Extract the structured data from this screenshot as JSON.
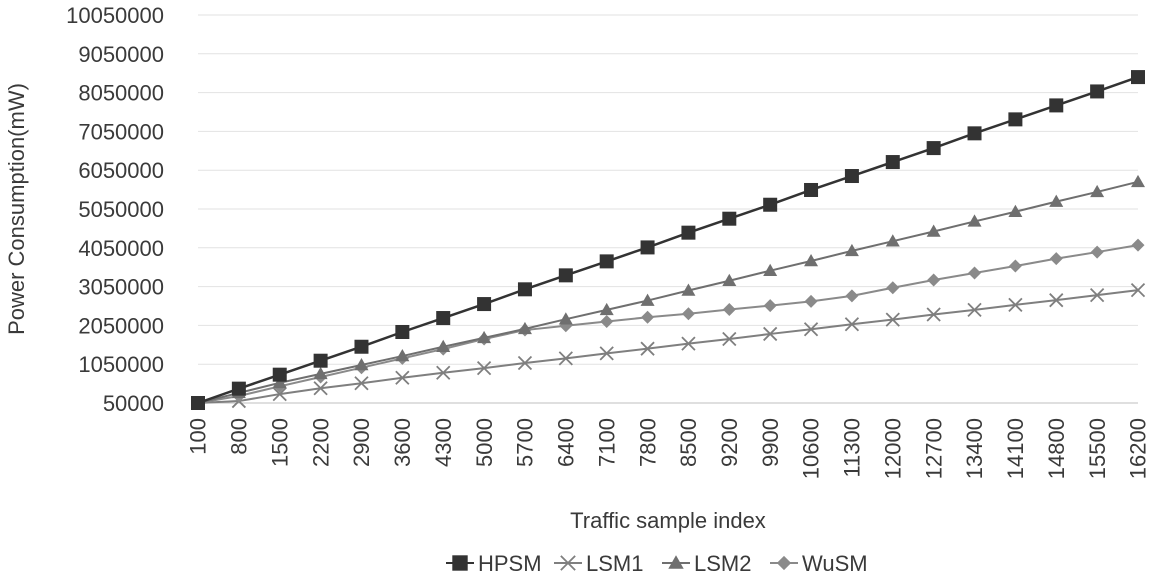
{
  "chart_data": {
    "type": "line",
    "title": "",
    "xlabel": "Traffic sample index",
    "ylabel": "Power Consumption(mW)",
    "ylim": [
      50000,
      10050000
    ],
    "yticks": [
      50000,
      1050000,
      2050000,
      3050000,
      4050000,
      5050000,
      6050000,
      7050000,
      8050000,
      9050000,
      10050000
    ],
    "grid": true,
    "legend": "bottom",
    "categories": [
      "100",
      "800",
      "1500",
      "2200",
      "2900",
      "3600",
      "4300",
      "5000",
      "5700",
      "6400",
      "7100",
      "7800",
      "8500",
      "9200",
      "9900",
      "10600",
      "11300",
      "12000",
      "12700",
      "13400",
      "14100",
      "14800",
      "15500",
      "16200"
    ],
    "series": [
      {
        "name": "HPSM",
        "color": "#333333",
        "marker": "square",
        "values": [
          50000,
          420000,
          780000,
          1140000,
          1500000,
          1880000,
          2240000,
          2600000,
          2980000,
          3340000,
          3700000,
          4060000,
          4440000,
          4800000,
          5160000,
          5540000,
          5900000,
          6260000,
          6620000,
          7000000,
          7360000,
          7720000,
          8080000,
          8450000
        ]
      },
      {
        "name": "LSM1",
        "color": "#7f7f7f",
        "marker": "x",
        "values": [
          50000,
          100000,
          280000,
          430000,
          560000,
          700000,
          830000,
          950000,
          1080000,
          1200000,
          1330000,
          1450000,
          1580000,
          1700000,
          1830000,
          1950000,
          2080000,
          2200000,
          2330000,
          2450000,
          2580000,
          2700000,
          2830000,
          2960000
        ]
      },
      {
        "name": "LSM2",
        "color": "#6f6f6f",
        "marker": "triangle",
        "values": [
          50000,
          310000,
          570000,
          800000,
          1030000,
          1260000,
          1500000,
          1730000,
          1960000,
          2210000,
          2450000,
          2690000,
          2950000,
          3200000,
          3460000,
          3710000,
          3970000,
          4220000,
          4470000,
          4730000,
          4980000,
          5240000,
          5490000,
          5750000
        ]
      },
      {
        "name": "WuSM",
        "color": "#8a8a8a",
        "marker": "diamond",
        "values": [
          50000,
          230000,
          480000,
          720000,
          960000,
          1200000,
          1440000,
          1700000,
          1930000,
          2040000,
          2150000,
          2260000,
          2350000,
          2460000,
          2560000,
          2670000,
          2810000,
          3020000,
          3220000,
          3400000,
          3580000,
          3770000,
          3940000,
          4120000
        ]
      }
    ]
  }
}
